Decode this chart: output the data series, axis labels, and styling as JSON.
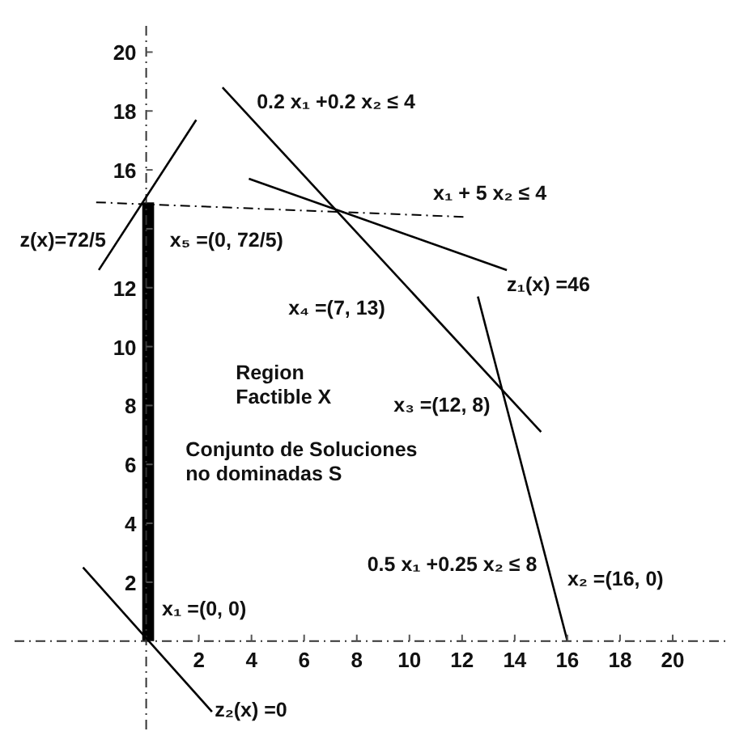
{
  "chart_data": {
    "type": "line",
    "xlim": [
      -5,
      22
    ],
    "ylim": [
      -3,
      21
    ],
    "xticks": [
      2,
      4,
      6,
      8,
      10,
      12,
      14,
      16,
      18,
      20
    ],
    "yticks": [
      2,
      4,
      6,
      8,
      10,
      12,
      {
        "value": 14,
        "label": null
      },
      16,
      18,
      20
    ],
    "marker": "none",
    "series": [
      {
        "color": "#333333",
        "x": [
          -5,
          22
        ],
        "values": [
          0,
          0
        ],
        "line_style": "dashed"
      },
      {
        "color": "#333333",
        "x": [
          0,
          0
        ],
        "values": [
          -3,
          21
        ],
        "line_style": "dashed"
      },
      {
        "color": "#000000",
        "x": [
          -1.8,
          1.9
        ],
        "values": [
          12.6,
          17.7
        ]
      },
      {
        "color": "#000000",
        "x": [
          -1.9,
          12.2
        ],
        "values": [
          14.9,
          14.4
        ],
        "line_style": "dashed"
      },
      {
        "color": "#000000",
        "x": [
          2.9,
          15.0
        ],
        "values": [
          18.8,
          7.1
        ]
      },
      {
        "color": "#000000",
        "x": [
          3.9,
          13.7
        ],
        "values": [
          15.7,
          12.6
        ]
      },
      {
        "color": "#000000",
        "x": [
          12.6,
          16
        ],
        "values": [
          11.7,
          0
        ]
      },
      {
        "color": "#000000",
        "x": [
          -2.4,
          2.5
        ],
        "values": [
          2.5,
          -2.4
        ]
      },
      {
        "type": "area",
        "color": "#000000",
        "x": [
          -0.15,
          0.3
        ],
        "values": [
          14.9,
          14.9
        ]
      }
    ],
    "annotations": [
      "z(x)=72/5",
      "x₅ =(0, 72/5)",
      "0.2 x₁ +0.2 x₂ ≤ 4",
      "x₁ + 5 x₂ ≤ 4",
      "z₁(x) =46",
      "x₄ =(7, 13)",
      "Region\nFactible X",
      "x₃ =(12, 8)",
      "Conjunto de Soluciones\nno dominadas S",
      "0.5 x₁ +0.25 x₂ ≤ 8",
      "x₂ =(16, 0)",
      "x₁ =(0, 0)",
      "z₂(x) =0"
    ]
  }
}
